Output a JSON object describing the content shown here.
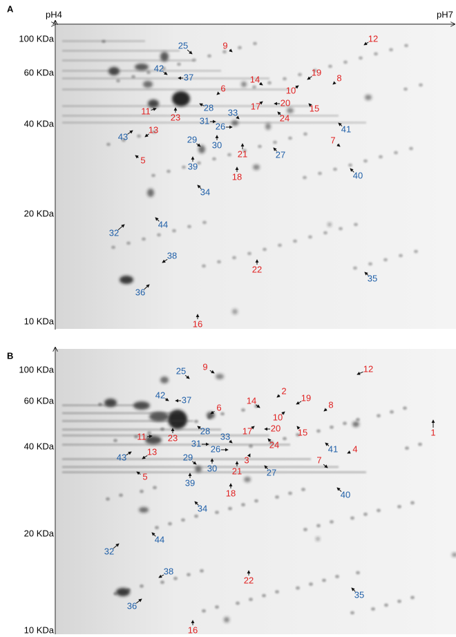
{
  "panels": [
    {
      "label": "A",
      "ph_start": "pH4",
      "ph_end": "pH7",
      "mw_labels": [
        "100 KDa",
        "60 KDa",
        "40 KDa",
        "20 KDa",
        "10 KDa"
      ],
      "spots": [
        {
          "label": "25",
          "color": "#1f5fa8"
        },
        {
          "label": "9",
          "color": "#e02020"
        },
        {
          "label": "12",
          "color": "#e02020"
        },
        {
          "label": "42",
          "color": "#1f5fa8"
        },
        {
          "label": "37",
          "color": "#1f5fa8"
        },
        {
          "label": "14",
          "color": "#e02020"
        },
        {
          "label": "19",
          "color": "#e02020"
        },
        {
          "label": "8",
          "color": "#e02020"
        },
        {
          "label": "6",
          "color": "#e02020"
        },
        {
          "label": "10",
          "color": "#e02020"
        },
        {
          "label": "20",
          "color": "#e02020"
        },
        {
          "label": "17",
          "color": "#e02020"
        },
        {
          "label": "15",
          "color": "#e02020"
        },
        {
          "label": "28",
          "color": "#1f5fa8"
        },
        {
          "label": "11",
          "color": "#e02020"
        },
        {
          "label": "23",
          "color": "#e02020"
        },
        {
          "label": "33",
          "color": "#1f5fa8"
        },
        {
          "label": "24",
          "color": "#e02020"
        },
        {
          "label": "31",
          "color": "#1f5fa8"
        },
        {
          "label": "26",
          "color": "#1f5fa8"
        },
        {
          "label": "41",
          "color": "#1f5fa8"
        },
        {
          "label": "13",
          "color": "#e02020"
        },
        {
          "label": "43",
          "color": "#1f5fa8"
        },
        {
          "label": "29",
          "color": "#1f5fa8"
        },
        {
          "label": "30",
          "color": "#1f5fa8"
        },
        {
          "label": "7",
          "color": "#e02020"
        },
        {
          "label": "21",
          "color": "#e02020"
        },
        {
          "label": "27",
          "color": "#1f5fa8"
        },
        {
          "label": "5",
          "color": "#e02020"
        },
        {
          "label": "39",
          "color": "#1f5fa8"
        },
        {
          "label": "18",
          "color": "#e02020"
        },
        {
          "label": "40",
          "color": "#1f5fa8"
        },
        {
          "label": "34",
          "color": "#1f5fa8"
        },
        {
          "label": "44",
          "color": "#1f5fa8"
        },
        {
          "label": "32",
          "color": "#1f5fa8"
        },
        {
          "label": "38",
          "color": "#1f5fa8"
        },
        {
          "label": "22",
          "color": "#e02020"
        },
        {
          "label": "35",
          "color": "#1f5fa8"
        },
        {
          "label": "36",
          "color": "#1f5fa8"
        },
        {
          "label": "16",
          "color": "#e02020"
        }
      ]
    },
    {
      "label": "B",
      "mw_labels": [
        "100 KDa",
        "60 KDa",
        "40 KDa",
        "20 KDa",
        "10 KDa"
      ],
      "spots": [
        {
          "label": "25",
          "color": "#1f5fa8"
        },
        {
          "label": "9",
          "color": "#e02020"
        },
        {
          "label": "12",
          "color": "#e02020"
        },
        {
          "label": "2",
          "color": "#e02020"
        },
        {
          "label": "42",
          "color": "#1f5fa8"
        },
        {
          "label": "37",
          "color": "#1f5fa8"
        },
        {
          "label": "19",
          "color": "#e02020"
        },
        {
          "label": "14",
          "color": "#e02020"
        },
        {
          "label": "8",
          "color": "#e02020"
        },
        {
          "label": "6",
          "color": "#e02020"
        },
        {
          "label": "10",
          "color": "#e02020"
        },
        {
          "label": "1",
          "color": "#e02020"
        },
        {
          "label": "28",
          "color": "#1f5fa8"
        },
        {
          "label": "20",
          "color": "#e02020"
        },
        {
          "label": "17",
          "color": "#e02020"
        },
        {
          "label": "15",
          "color": "#e02020"
        },
        {
          "label": "11",
          "color": "#e02020"
        },
        {
          "label": "23",
          "color": "#e02020"
        },
        {
          "label": "33",
          "color": "#1f5fa8"
        },
        {
          "label": "24",
          "color": "#e02020"
        },
        {
          "label": "31",
          "color": "#1f5fa8"
        },
        {
          "label": "26",
          "color": "#1f5fa8"
        },
        {
          "label": "41",
          "color": "#1f5fa8"
        },
        {
          "label": "4",
          "color": "#e02020"
        },
        {
          "label": "13",
          "color": "#e02020"
        },
        {
          "label": "43",
          "color": "#1f5fa8"
        },
        {
          "label": "29",
          "color": "#1f5fa8"
        },
        {
          "label": "7",
          "color": "#e02020"
        },
        {
          "label": "3",
          "color": "#e02020"
        },
        {
          "label": "30",
          "color": "#1f5fa8"
        },
        {
          "label": "21",
          "color": "#e02020"
        },
        {
          "label": "27",
          "color": "#1f5fa8"
        },
        {
          "label": "5",
          "color": "#e02020"
        },
        {
          "label": "39",
          "color": "#1f5fa8"
        },
        {
          "label": "18",
          "color": "#e02020"
        },
        {
          "label": "40",
          "color": "#1f5fa8"
        },
        {
          "label": "34",
          "color": "#1f5fa8"
        },
        {
          "label": "44",
          "color": "#1f5fa8"
        },
        {
          "label": "32",
          "color": "#1f5fa8"
        },
        {
          "label": "38",
          "color": "#1f5fa8"
        },
        {
          "label": "22",
          "color": "#e02020"
        },
        {
          "label": "35",
          "color": "#1f5fa8"
        },
        {
          "label": "36",
          "color": "#1f5fa8"
        },
        {
          "label": "16",
          "color": "#e02020"
        }
      ]
    }
  ]
}
